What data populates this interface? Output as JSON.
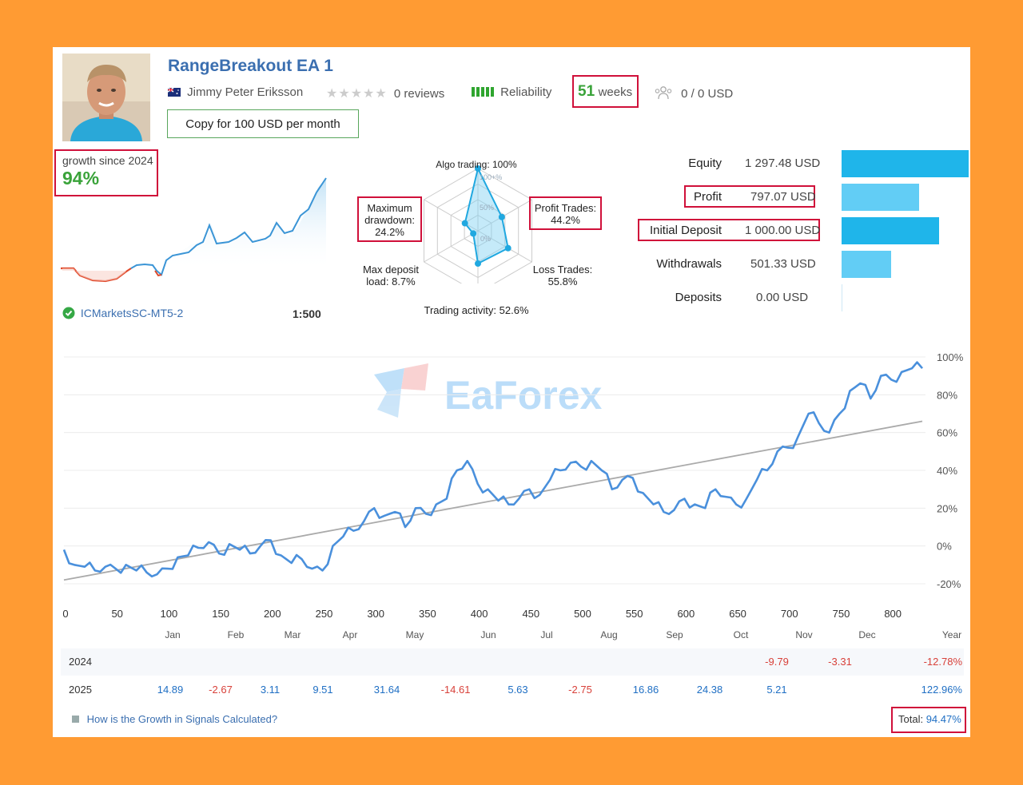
{
  "header": {
    "title": "RangeBreakout EA 1",
    "author": "Jimmy Peter Eriksson",
    "reviews": "0 reviews",
    "reliability": "Reliability",
    "weeks_num": "51",
    "weeks_label": "weeks",
    "subscribers": "0 / 0 USD",
    "copy_button": "Copy for 100 USD per month"
  },
  "growth": {
    "label": "growth since 2024",
    "value": "94%",
    "broker": "ICMarketsSC-MT5-2",
    "leverage": "1:500"
  },
  "radar": {
    "algo": "Algo trading: 100%",
    "profit_trades": [
      "Profit Trades:",
      "44.2%"
    ],
    "loss_trades": [
      "Loss Trades:",
      "55.8%"
    ],
    "trading_activity": "Trading activity: 52.6%",
    "max_deposit_load": [
      "Max deposit",
      "load: 8.7%"
    ],
    "max_drawdown": [
      "Maximum",
      "drawdown:",
      "24.2%"
    ],
    "ticks": [
      "100+%",
      "50%",
      "0%"
    ],
    "values": [
      1.0,
      0.442,
      0.558,
      0.526,
      0.087,
      0.242
    ]
  },
  "stats": [
    {
      "label": "Equity",
      "value": "1 297.48 USD",
      "bar_frac": 1.0,
      "color": "#1fb5ea"
    },
    {
      "label": "Profit",
      "value": "797.07 USD",
      "bar_frac": 0.61,
      "color": "#62cdf5"
    },
    {
      "label": "Initial Deposit",
      "value": "1 000.00 USD",
      "bar_frac": 0.77,
      "color": "#1fb5ea"
    },
    {
      "label": "Withdrawals",
      "value": "501.33 USD",
      "bar_frac": 0.39,
      "color": "#62cdf5"
    },
    {
      "label": "Deposits",
      "value": "0.00 USD",
      "bar_frac": 0.0,
      "color": "#62cdf5"
    }
  ],
  "watermark": "EaForex",
  "chart_data": {
    "type": "line",
    "x_ticks": [
      "0",
      "50",
      "100",
      "150",
      "200",
      "250",
      "300",
      "350",
      "400",
      "450",
      "500",
      "550",
      "600",
      "650",
      "700",
      "750",
      "800"
    ],
    "y_ticks": [
      "100%",
      "80%",
      "60%",
      "40%",
      "20%",
      "0%",
      "-20%"
    ],
    "xlim": [
      0,
      830
    ],
    "ylim": [
      -20,
      100
    ],
    "months": [
      "Jan",
      "Feb",
      "Mar",
      "Apr",
      "May",
      "Jun",
      "Jul",
      "Aug",
      "Sep",
      "Oct",
      "Nov",
      "Dec",
      "Year"
    ],
    "series": [
      {
        "x": [
          0,
          10,
          20,
          30,
          40,
          50,
          60,
          70,
          80,
          90,
          100,
          110,
          120,
          130,
          140,
          150,
          160,
          170,
          180,
          190,
          200,
          210,
          220,
          230,
          240,
          250,
          260,
          270,
          280,
          290,
          300,
          310,
          320,
          330,
          340,
          350,
          360,
          370,
          380,
          390,
          400,
          410,
          420,
          430,
          440,
          450,
          460,
          470,
          480,
          490,
          500,
          510,
          520,
          530,
          540,
          550,
          560,
          570,
          580,
          590,
          600,
          610,
          620,
          630,
          640,
          650,
          660,
          670,
          680,
          690,
          700,
          710,
          720,
          730,
          740,
          750,
          760,
          770,
          780,
          790,
          800,
          810,
          820,
          830
        ],
        "y": [
          -2,
          -10,
          -11,
          -13,
          -11,
          -12,
          -10,
          -13,
          -14,
          -15,
          -12,
          -6,
          -5,
          -1,
          2,
          -4,
          1,
          -2,
          -4,
          0,
          3,
          -5,
          -9,
          -7,
          -12,
          -13,
          0,
          5,
          8,
          13,
          20,
          16,
          18,
          10,
          20,
          17,
          22,
          25,
          40,
          45,
          33,
          30,
          24,
          22,
          25,
          30,
          27,
          35,
          40,
          44,
          42,
          45,
          40,
          30,
          35,
          36,
          28,
          22,
          18,
          19,
          25,
          22,
          20,
          30,
          26,
          22,
          25,
          35,
          40,
          50,
          52,
          58,
          70,
          65,
          60,
          70,
          82,
          86,
          78,
          90,
          88,
          92,
          94,
          94
        ]
      },
      {
        "x": [
          0,
          830
        ],
        "y": [
          -18,
          66
        ]
      }
    ]
  },
  "table": {
    "years": [
      {
        "year": "2024",
        "cells": [
          "",
          "",
          "",
          "",
          "",
          "",
          "",
          "",
          "",
          "",
          "-9.79",
          "-3.31"
        ],
        "total": "-12.78%"
      },
      {
        "year": "2025",
        "cells": [
          "14.89",
          "-2.67",
          "3.11",
          "9.51",
          "31.64",
          "-14.61",
          "5.63",
          "-2.75",
          "16.86",
          "24.38",
          "5.21",
          ""
        ],
        "total": "122.96%"
      }
    ],
    "help_link": "How is the Growth in Signals Calculated?",
    "total_label": "Total:",
    "total_value": "94.47%"
  },
  "colors": {
    "accent": "#3b6fb0",
    "positive": "#3aa33a",
    "negative": "#d8413a",
    "link": "#1f6fc4",
    "highlight": "#d0103a"
  }
}
